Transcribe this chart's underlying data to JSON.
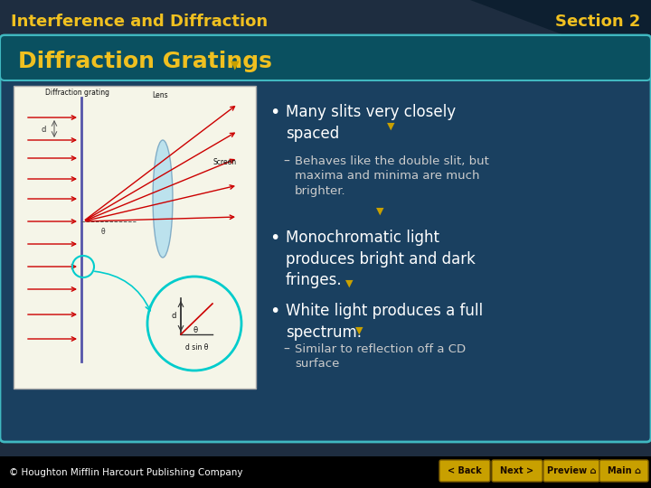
{
  "bg_color": "#1e2d40",
  "header_text": "Interference and Diffraction",
  "section_text": "Section 2",
  "header_color": "#f0c020",
  "title_text": "Diffraction Gratings",
  "title_color": "#f0c020",
  "title_bg": "#0a5060",
  "content_bg": "#1a4060",
  "content_border": "#40b8c0",
  "white": "#ffffff",
  "light_gray": "#cccccc",
  "arrow_color": "#c8a000",
  "img_bg": "#f5f5e8",
  "img_border": "#aaaaaa",
  "red_line": "#cc0000",
  "dark_line": "#333333",
  "cyan_circle": "#00cccc",
  "lens_color": "#aadcf0",
  "footer_text": "© Houghton Mifflin Harcourt Publishing Company",
  "footer_color": "#ffffff",
  "footer_bg": "#000000",
  "nav_buttons": [
    "< Back",
    "Next >",
    "Preview ⌂",
    "Main ⌂"
  ],
  "nav_bg": "#c8a000",
  "nav_text": "#1a0a00",
  "corner_dark": "#0d1f30"
}
